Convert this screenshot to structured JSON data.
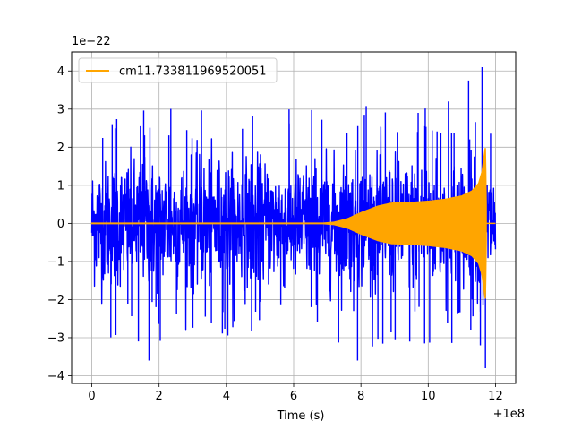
{
  "chart_data": {
    "type": "line",
    "title": "",
    "xlabel": "Time (s)",
    "ylabel": "",
    "x_offset_label": "+1e8",
    "y_scale_label": "1e−22",
    "xlim": [
      -0.6,
      12.6
    ],
    "ylim": [
      -4.2,
      4.5
    ],
    "x_ticks": [
      0,
      2,
      4,
      6,
      8,
      10,
      12
    ],
    "x_tick_labels": [
      "0",
      "2",
      "4",
      "6",
      "8",
      "10",
      "12"
    ],
    "y_ticks": [
      -4,
      -3,
      -2,
      -1,
      0,
      1,
      2,
      3,
      4
    ],
    "y_tick_labels": [
      "−4",
      "−3",
      "−2",
      "−1",
      "0",
      "1",
      "2",
      "3",
      "4"
    ],
    "grid": true,
    "legend_position": "top-left",
    "series": [
      {
        "name": "",
        "color": "#0000ff",
        "style": "noise",
        "x_range": [
          0,
          12
        ],
        "typical_amplitude": 1.6,
        "max": 4.1,
        "min": -3.8
      },
      {
        "name": "cm11.733811969520051",
        "color": "#ffa500",
        "style": "chirp",
        "envelope": {
          "x": [
            0,
            6.8,
            7.2,
            7.6,
            8.0,
            8.5,
            8.9,
            9.5,
            10.0,
            10.5,
            11.0,
            11.3,
            11.5,
            11.6,
            11.66,
            11.7,
            11.73
          ],
          "y": [
            0.0,
            0.0,
            0.03,
            0.12,
            0.28,
            0.45,
            0.53,
            0.55,
            0.58,
            0.63,
            0.72,
            0.85,
            1.05,
            1.35,
            1.75,
            2.0,
            0.0
          ]
        },
        "merger_time": 11.73
      }
    ]
  }
}
